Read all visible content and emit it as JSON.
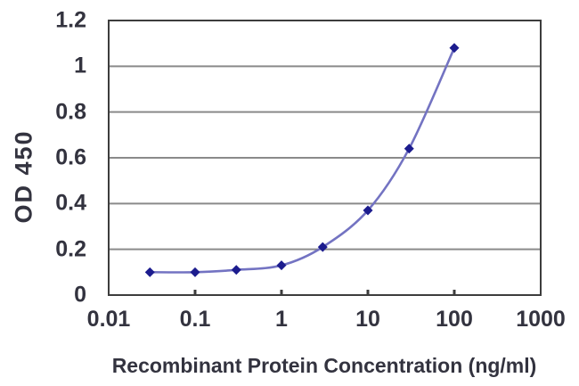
{
  "chart_data": {
    "type": "line",
    "title": "",
    "xlabel": "Recombinant Protein Concentration (ng/ml)",
    "ylabel": "OD 450",
    "x_scale": "log",
    "xlim": [
      0.01,
      1000
    ],
    "ylim": [
      0,
      1.2
    ],
    "x_tick_labels": [
      "0.01",
      "0.1",
      "1",
      "10",
      "100",
      "1000"
    ],
    "x_tick_values": [
      0.01,
      0.1,
      1,
      10,
      100,
      1000
    ],
    "y_tick_labels": [
      "0",
      "0.2",
      "0.4",
      "0.6",
      "0.8",
      "1",
      "1.2"
    ],
    "y_tick_values": [
      0,
      0.2,
      0.4,
      0.6,
      0.8,
      1,
      1.2
    ],
    "grid": "horizontal-only",
    "legend": "none",
    "series": [
      {
        "x": [
          0.03,
          0.1,
          0.3,
          1,
          3,
          10,
          30,
          100
        ],
        "y": [
          0.1,
          0.1,
          0.11,
          0.13,
          0.21,
          0.37,
          0.64,
          1.08
        ],
        "marker": "diamond",
        "line_style": "smooth"
      }
    ],
    "colors": {
      "line": "#7373c2",
      "marker": "#1c1c8e",
      "gridline": "#8a8a8a",
      "axis_frame": "#3d3d3d",
      "text": "#33333f",
      "background": "#ffffff"
    }
  }
}
